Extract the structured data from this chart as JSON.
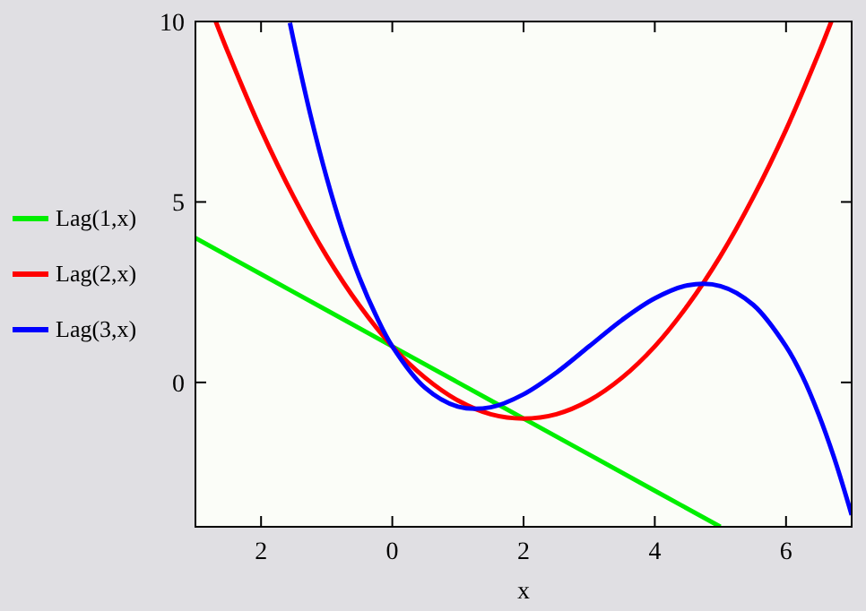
{
  "chart_data": {
    "type": "line",
    "xlabel": "x",
    "xlim": [
      -3,
      7
    ],
    "ylim": [
      -4,
      10
    ],
    "xticks": [
      {
        "value": -2,
        "label": "2"
      },
      0,
      2,
      4,
      6
    ],
    "yticks": [
      0,
      5,
      10
    ],
    "grid": false,
    "legend": "left",
    "marker": "none",
    "line_style": "solid",
    "series": [
      {
        "name": "Lag(1,x)",
        "color": "#00ee00",
        "x": [
          -3,
          -2,
          -1,
          0,
          1,
          2,
          3,
          4,
          5
        ],
        "values": [
          4,
          3,
          2,
          1,
          0,
          -1,
          -2,
          -3,
          -4
        ]
      },
      {
        "name": "Lag(2,x)",
        "color": "#ff0000",
        "x": [
          -2.69,
          -2.5,
          -2,
          -1.5,
          -1,
          -0.5,
          0,
          0.5,
          1,
          1.5,
          2,
          2.5,
          3,
          3.5,
          4,
          4.5,
          5,
          5.5,
          6,
          6.5,
          6.69
        ],
        "values": [
          10,
          9.13,
          7,
          5.13,
          3.5,
          2.13,
          1,
          0.13,
          -0.5,
          -0.88,
          -1,
          -0.88,
          -0.5,
          0.13,
          1,
          2.13,
          3.5,
          5.13,
          7,
          9.13,
          10
        ]
      },
      {
        "name": "Lag(3,x)",
        "color": "#0000ff",
        "x": [
          -1.56,
          -1.5,
          -1.25,
          -1,
          -0.75,
          -0.5,
          -0.25,
          0,
          0.5,
          1,
          1.5,
          2,
          2.5,
          3,
          3.5,
          4,
          4.5,
          5,
          5.5,
          6,
          6.25,
          6.5,
          6.75,
          7
        ],
        "values": [
          9.96,
          9.44,
          7.43,
          5.67,
          4.16,
          2.9,
          1.86,
          1,
          -0.15,
          -0.67,
          -0.69,
          -0.33,
          0.27,
          1,
          1.73,
          2.33,
          2.69,
          2.67,
          2.15,
          1,
          0.17,
          -0.9,
          -2.18,
          -3.67
        ]
      }
    ]
  }
}
